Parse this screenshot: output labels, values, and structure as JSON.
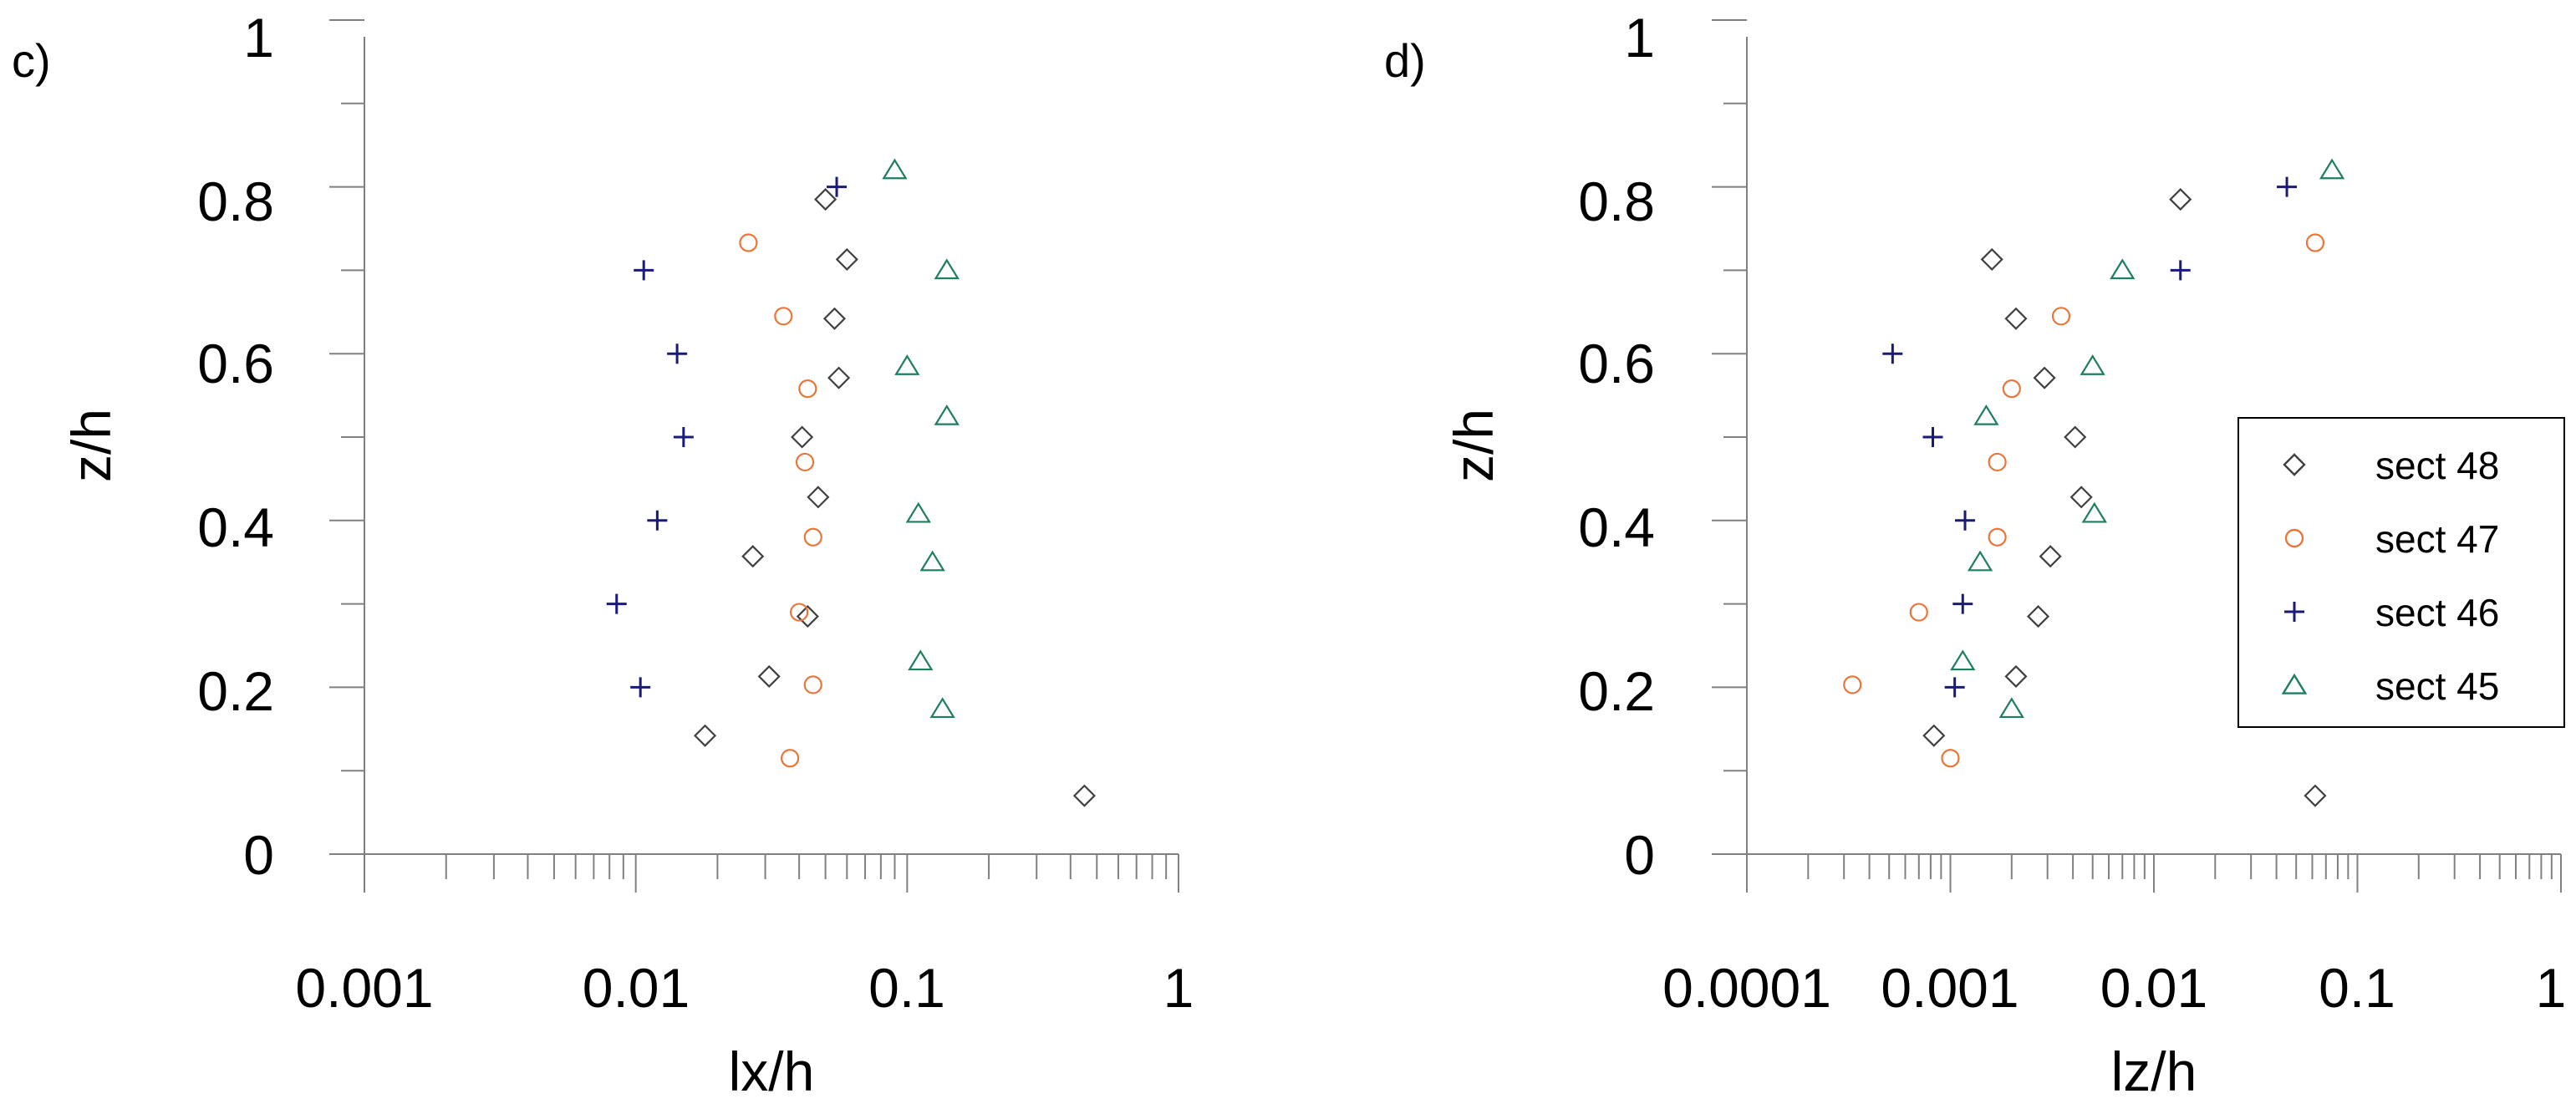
{
  "chart_data": [
    {
      "type": "scatter",
      "panel_label": "c)",
      "xscale": "log",
      "xlim": [
        0.001,
        1
      ],
      "ylim": [
        0,
        1
      ],
      "xlabel": "lx/h",
      "ylabel": "z/h",
      "x_tick_labels": [
        "0.001",
        "0.01",
        "0.1",
        "1"
      ],
      "y_tick_labels": [
        "0",
        "0.2",
        "0.4",
        "0.6",
        "0.8",
        "1"
      ],
      "series": [
        {
          "name": "sect 48",
          "marker": "diamond",
          "color": "#404040",
          "points": [
            [
              0.45,
              0.07
            ],
            [
              0.018,
              0.142
            ],
            [
              0.031,
              0.213
            ],
            [
              0.043,
              0.285
            ],
            [
              0.027,
              0.357
            ],
            [
              0.047,
              0.428
            ],
            [
              0.041,
              0.5
            ],
            [
              0.056,
              0.571
            ],
            [
              0.054,
              0.642
            ],
            [
              0.06,
              0.713
            ],
            [
              0.05,
              0.785
            ]
          ]
        },
        {
          "name": "sect 47",
          "marker": "circle",
          "color": "#E8763A",
          "points": [
            [
              0.037,
              0.115
            ],
            [
              0.045,
              0.203
            ],
            [
              0.04,
              0.29
            ],
            [
              0.045,
              0.38
            ],
            [
              0.042,
              0.47
            ],
            [
              0.043,
              0.558
            ],
            [
              0.035,
              0.645
            ],
            [
              0.026,
              0.733
            ]
          ]
        },
        {
          "name": "sect 46",
          "marker": "plus",
          "color": "#1A1A7A",
          "points": [
            [
              0.0104,
              0.2
            ],
            [
              0.0085,
              0.3
            ],
            [
              0.012,
              0.4
            ],
            [
              0.015,
              0.5
            ],
            [
              0.0142,
              0.6
            ],
            [
              0.0107,
              0.7
            ],
            [
              0.055,
              0.8
            ]
          ]
        },
        {
          "name": "sect 45",
          "marker": "triangle",
          "color": "#1E7F5C",
          "points": [
            [
              0.135,
              0.174
            ],
            [
              0.112,
              0.231
            ],
            [
              0.124,
              0.35
            ],
            [
              0.11,
              0.408
            ],
            [
              0.14,
              0.525
            ],
            [
              0.1,
              0.585
            ],
            [
              0.14,
              0.7
            ],
            [
              0.09,
              0.82
            ]
          ]
        }
      ]
    },
    {
      "type": "scatter",
      "panel_label": "d)",
      "xscale": "log",
      "xlim": [
        0.0001,
        1
      ],
      "ylim": [
        0,
        1
      ],
      "xlabel": "lz/h",
      "ylabel": "z/h",
      "x_tick_labels": [
        "0.0001",
        "0.001",
        "0.01",
        "0.1",
        "1"
      ],
      "y_tick_labels": [
        "0",
        "0.2",
        "0.4",
        "0.6",
        "0.8",
        "1"
      ],
      "legend": {
        "position": "right-middle",
        "entries": [
          "sect 48",
          "sect 47",
          "sect 46",
          "sect 45"
        ]
      },
      "series": [
        {
          "name": "sect 48",
          "marker": "diamond",
          "color": "#404040",
          "points": [
            [
              0.062,
              0.07
            ],
            [
              0.00083,
              0.142
            ],
            [
              0.0021,
              0.213
            ],
            [
              0.0027,
              0.285
            ],
            [
              0.0031,
              0.357
            ],
            [
              0.0044,
              0.428
            ],
            [
              0.0041,
              0.5
            ],
            [
              0.0029,
              0.571
            ],
            [
              0.0021,
              0.642
            ],
            [
              0.0016,
              0.713
            ],
            [
              0.0135,
              0.785
            ]
          ]
        },
        {
          "name": "sect 47",
          "marker": "circle",
          "color": "#E8763A",
          "points": [
            [
              0.001,
              0.115
            ],
            [
              0.00033,
              0.203
            ],
            [
              0.0007,
              0.29
            ],
            [
              0.0017,
              0.38
            ],
            [
              0.0017,
              0.47
            ],
            [
              0.002,
              0.558
            ],
            [
              0.0035,
              0.645
            ],
            [
              0.062,
              0.733
            ]
          ]
        },
        {
          "name": "sect 46",
          "marker": "plus",
          "color": "#1A1A7A",
          "points": [
            [
              0.00105,
              0.2
            ],
            [
              0.00115,
              0.3
            ],
            [
              0.00118,
              0.4
            ],
            [
              0.00082,
              0.5
            ],
            [
              0.00052,
              0.6
            ],
            [
              0.0135,
              0.7
            ],
            [
              0.045,
              0.8
            ]
          ]
        },
        {
          "name": "sect 45",
          "marker": "triangle",
          "color": "#1E7F5C",
          "points": [
            [
              0.002,
              0.174
            ],
            [
              0.00115,
              0.231
            ],
            [
              0.0014,
              0.35
            ],
            [
              0.0051,
              0.408
            ],
            [
              0.0015,
              0.525
            ],
            [
              0.005,
              0.585
            ],
            [
              0.007,
              0.7
            ],
            [
              0.075,
              0.82
            ]
          ]
        }
      ]
    }
  ]
}
